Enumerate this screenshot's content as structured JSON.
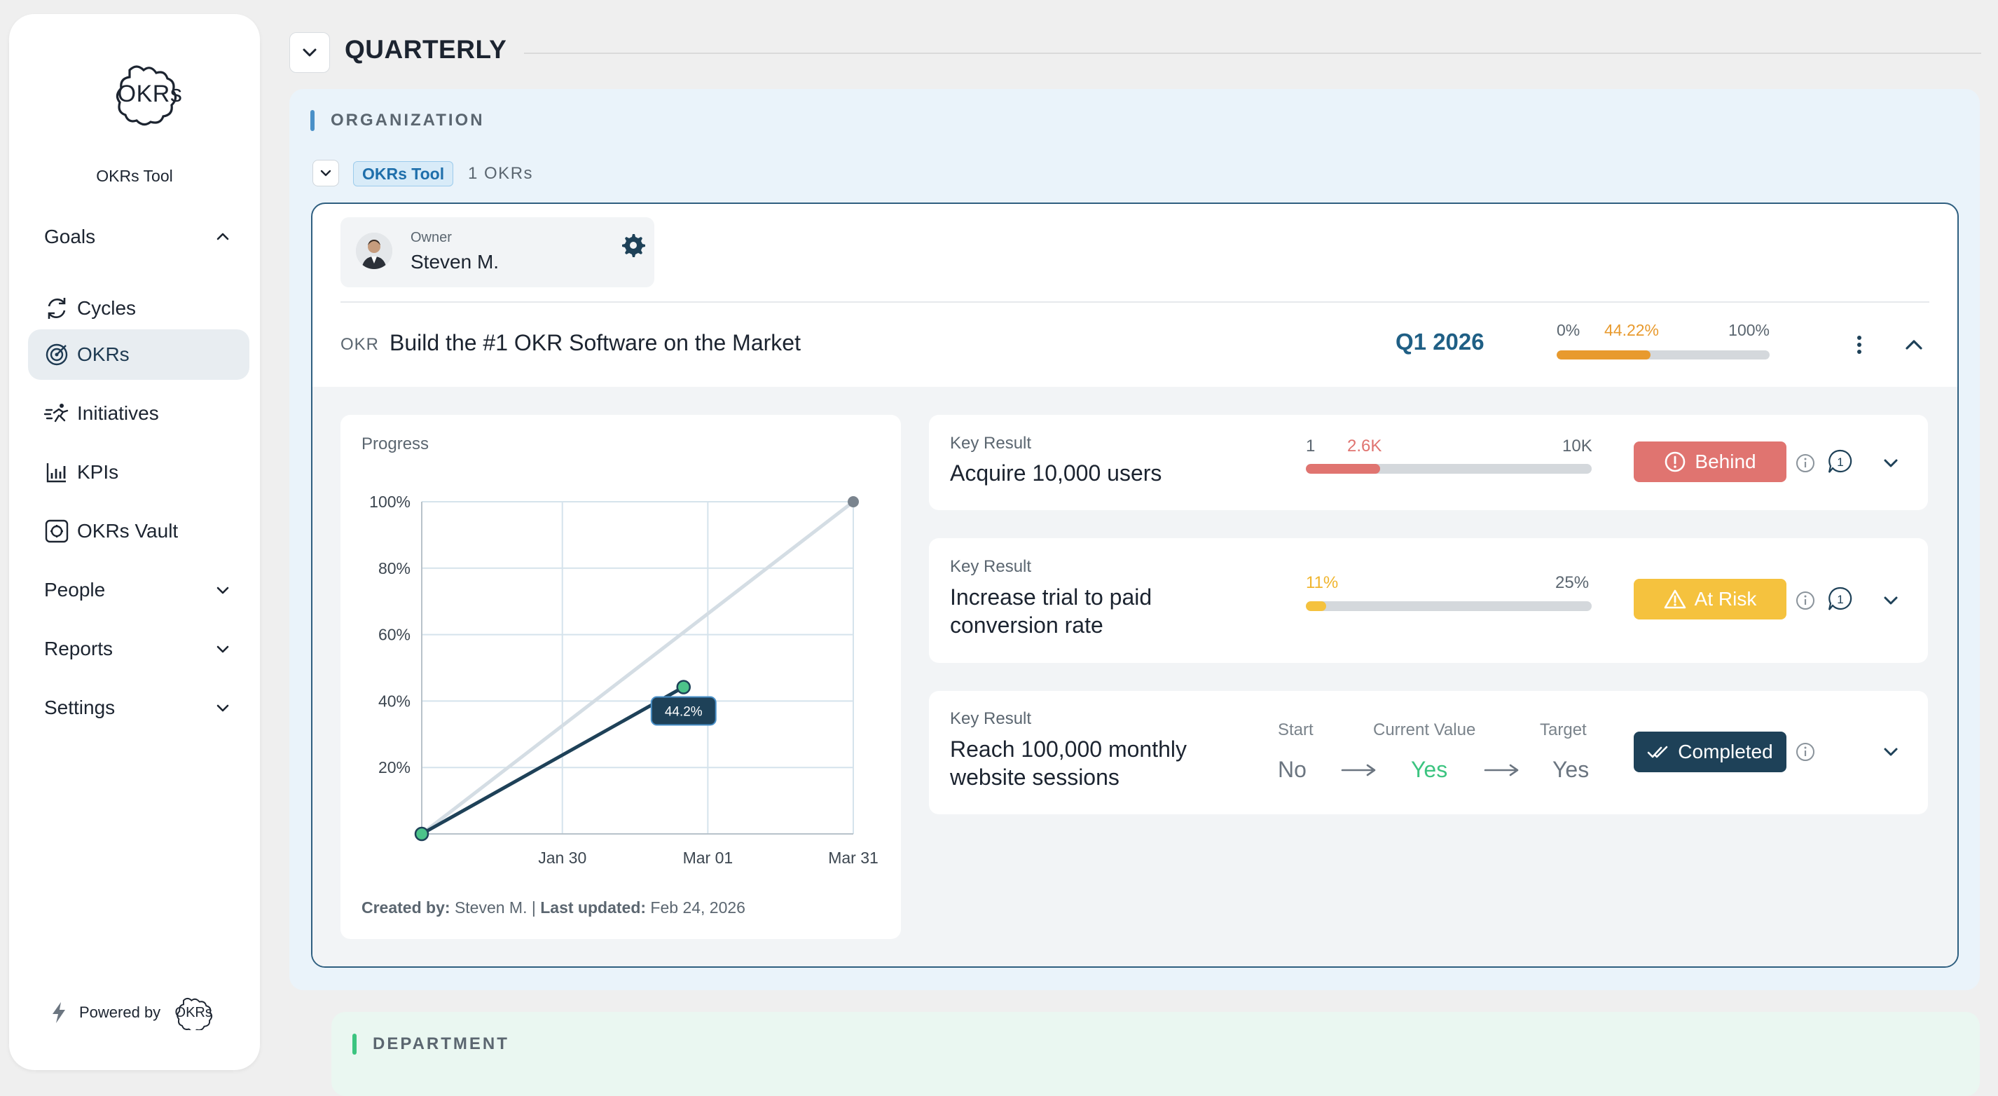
{
  "sidebar": {
    "logo_text": "OKRs",
    "app_name": "OKRs Tool",
    "groups": {
      "goals": "Goals",
      "people": "People",
      "reports": "Reports",
      "settings": "Settings"
    },
    "items": [
      {
        "label": "Cycles",
        "icon": "cycles-icon"
      },
      {
        "label": "OKRs",
        "icon": "okrs-icon",
        "active": true
      },
      {
        "label": "Initiatives",
        "icon": "initiatives-icon"
      },
      {
        "label": "KPIs",
        "icon": "kpis-icon"
      },
      {
        "label": "OKRs Vault",
        "icon": "vault-icon"
      }
    ],
    "powered_by": "Powered by",
    "powered_logo": "OKRs"
  },
  "header": {
    "title": "QUARTERLY"
  },
  "organization": {
    "section_label": "ORGANIZATION",
    "team_tag": "OKRs Tool",
    "okr_count": "1 OKRs",
    "owner_label": "Owner",
    "owner_name": "Steven M.",
    "okr": {
      "tag": "OKR",
      "title": "Build the #1 OKR Software on the Market",
      "cycle": "Q1 2026",
      "progress_min": "0%",
      "progress_value": "44.22%",
      "progress_max": "100%",
      "progress_fraction": 0.4422
    },
    "progress_chart": {
      "heading": "Progress",
      "footer_created_label": "Created by:",
      "footer_created_value": "Steven M.",
      "footer_sep": "|",
      "footer_updated_label": "Last updated:",
      "footer_updated_value": "Feb 24, 2026"
    },
    "key_results": [
      {
        "label": "Key Result",
        "title": "Acquire 10,000 users",
        "start": "1",
        "current": "2.6K",
        "target": "10K",
        "fraction": 0.26,
        "status": "Behind",
        "status_color": "#e07470",
        "bar_color": "#e07470",
        "comments": "1"
      },
      {
        "label": "Key Result",
        "title": "Increase trial to paid conversion rate",
        "current": "11%",
        "target": "25%",
        "fraction": 0.07,
        "status": "At Risk",
        "status_color": "#f5c23e",
        "bar_color": "#f5c23e",
        "comments": "1"
      },
      {
        "label": "Key Result",
        "title": "Reach 100,000 monthly website sessions",
        "start_label": "Start",
        "current_label": "Current Value",
        "target_label": "Target",
        "start": "No",
        "current": "Yes",
        "target": "Yes",
        "status": "Completed",
        "status_color": "#1e4158"
      }
    ]
  },
  "department": {
    "section_label": "DEPARTMENT"
  },
  "chart_data": {
    "type": "line",
    "title": "Progress",
    "x_ticks": [
      "Jan 30",
      "Mar 01",
      "Mar 31"
    ],
    "y_ticks": [
      "20%",
      "40%",
      "60%",
      "80%",
      "100%"
    ],
    "ylim": [
      0,
      100
    ],
    "series": [
      {
        "x": [
          "Jan 01",
          "Mar 31"
        ],
        "values": [
          0,
          100
        ]
      },
      {
        "x": [
          "Jan 01",
          "Feb 24"
        ],
        "values": [
          0,
          44.2
        ]
      }
    ],
    "annotations": [
      {
        "x": "Feb 24",
        "y": 44.2,
        "text": "44.2%"
      }
    ],
    "grid": true
  },
  "colors": {
    "accent": "#1f5f85",
    "progress_orange": "#e89a2e",
    "ideal_line": "#d4dde4",
    "actual_line": "#1e4158",
    "point_green": "#4cc38a",
    "completed_green": "#3cc480"
  }
}
